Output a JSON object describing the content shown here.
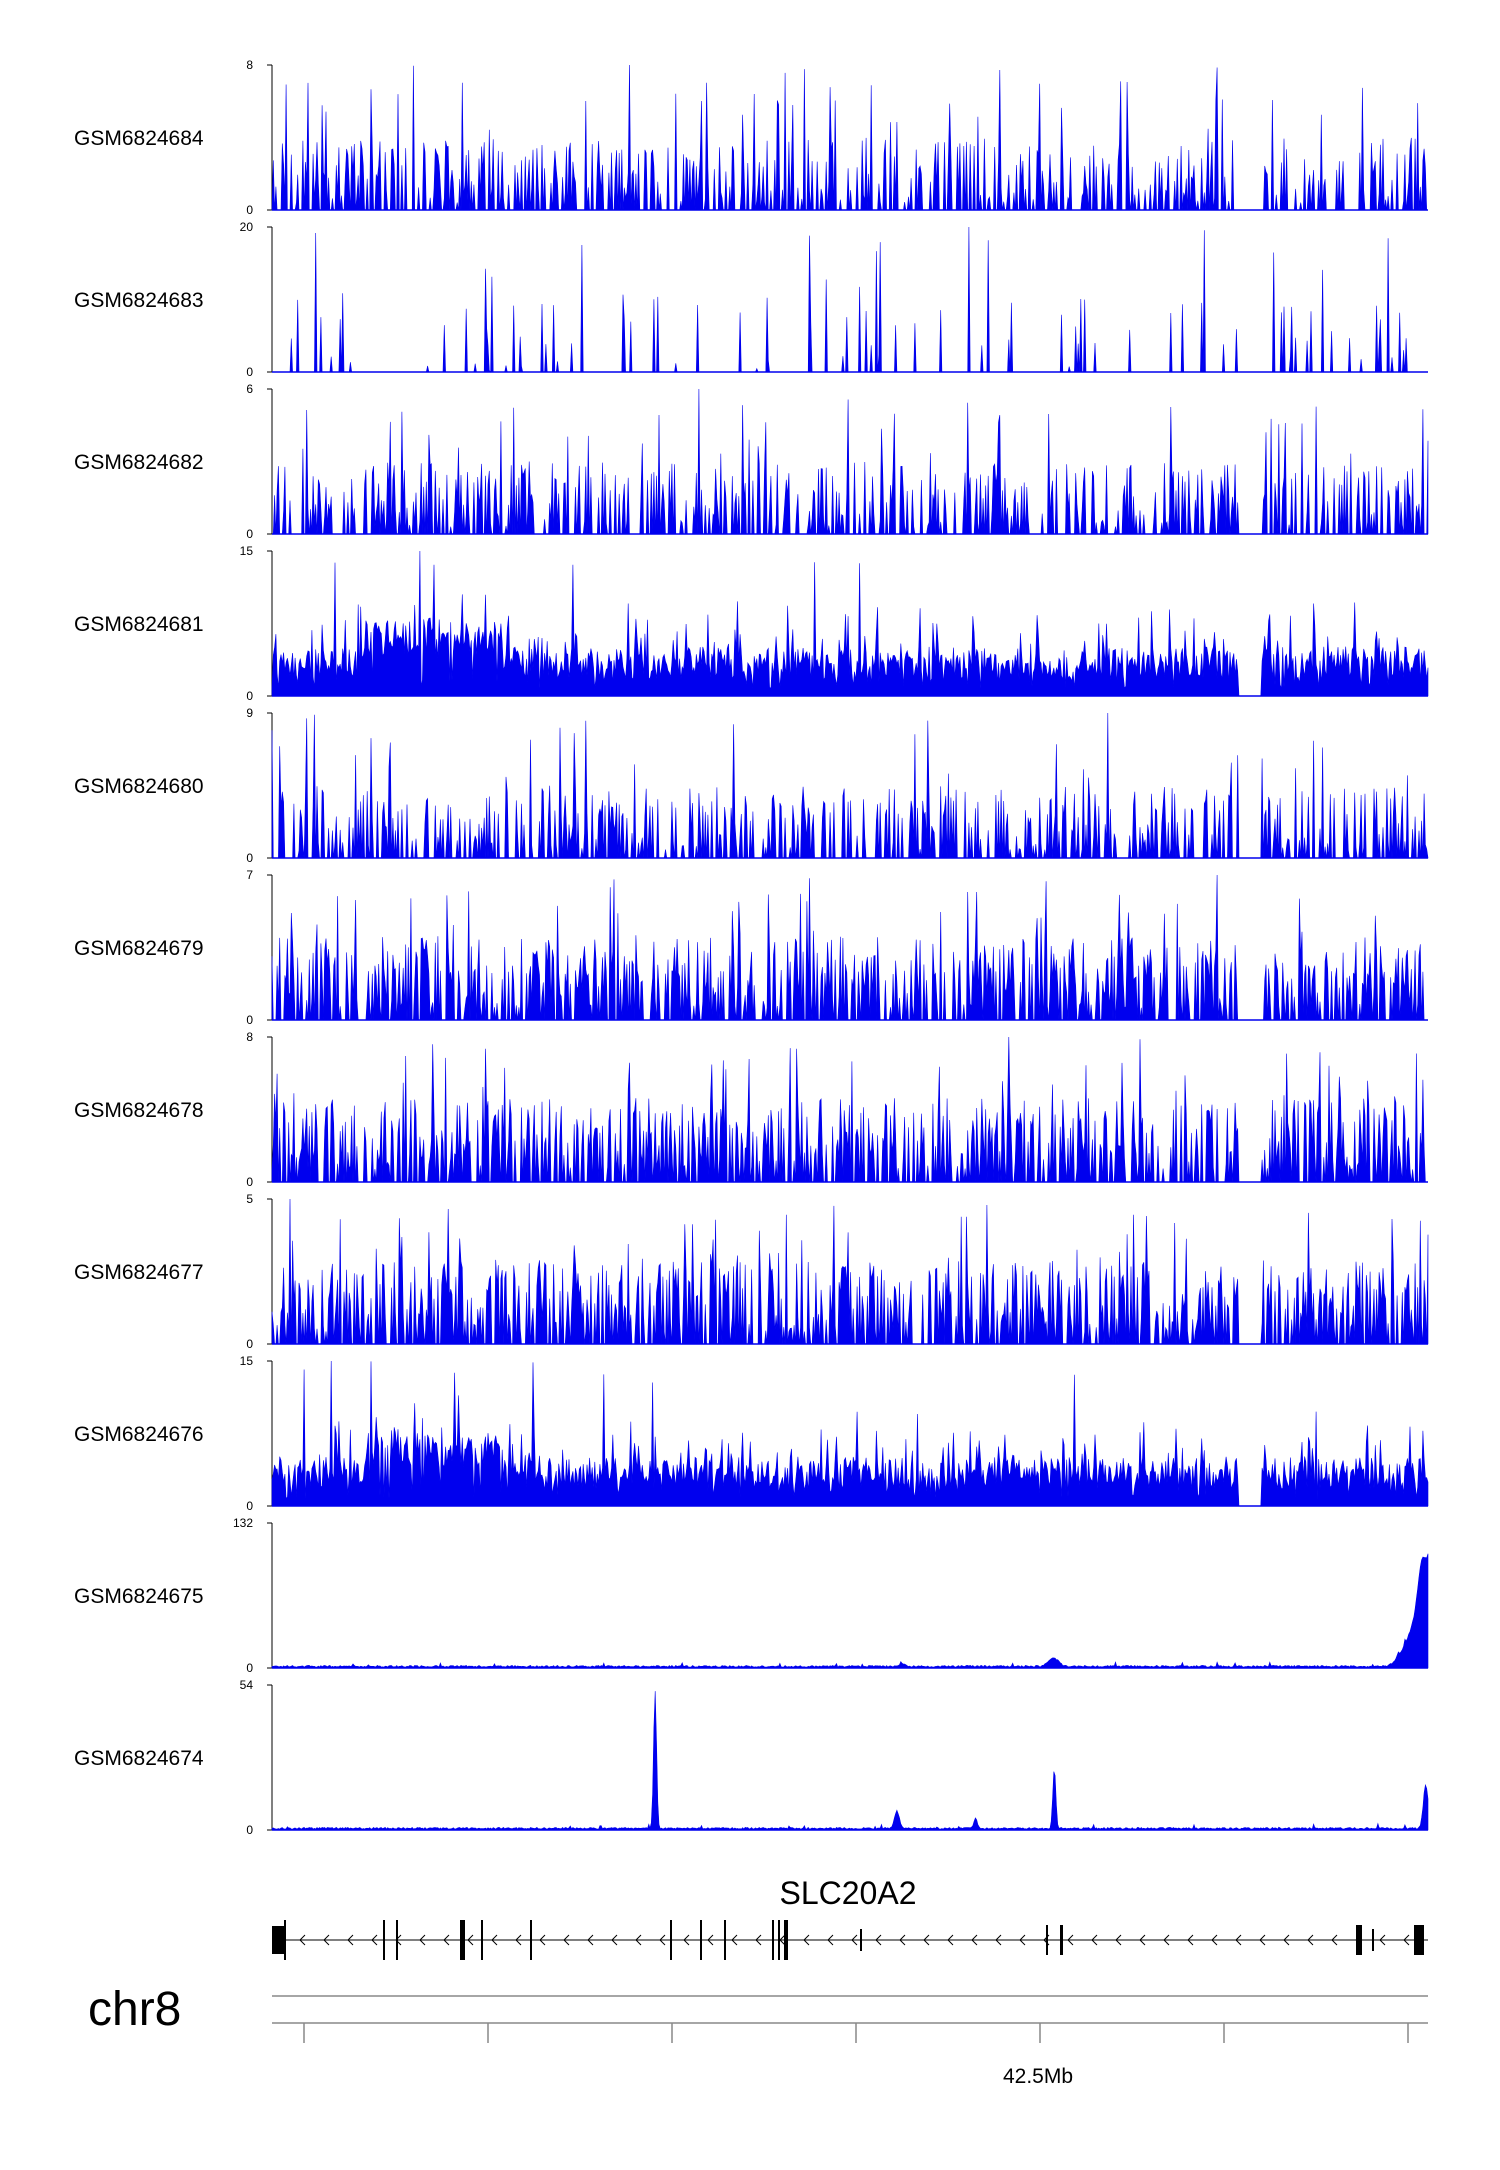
{
  "colors": {
    "signal": "#0000ee",
    "axis": "#000000",
    "gene": "#000000",
    "ruler": "#888888"
  },
  "chart_data": {
    "type": "area",
    "tracks": [
      {
        "name": "GSM6824684",
        "ymax_label": "8",
        "ymin_label": "0",
        "ylim": [
          0,
          8
        ],
        "profile": "sparse"
      },
      {
        "name": "GSM6824683",
        "ymax_label": "20",
        "ymin_label": "0",
        "ylim": [
          0,
          20
        ],
        "profile": "very-sparse"
      },
      {
        "name": "GSM6824682",
        "ymax_label": "6",
        "ymin_label": "0",
        "ylim": [
          0,
          6
        ],
        "profile": "sparse"
      },
      {
        "name": "GSM6824681",
        "ymax_label": "15",
        "ymin_label": "0",
        "ylim": [
          0,
          15
        ],
        "profile": "dense"
      },
      {
        "name": "GSM6824680",
        "ymax_label": "9",
        "ymin_label": "0",
        "ylim": [
          0,
          9
        ],
        "profile": "sparse"
      },
      {
        "name": "GSM6824679",
        "ymax_label": "7",
        "ymin_label": "0",
        "ylim": [
          0,
          7
        ],
        "profile": "medium"
      },
      {
        "name": "GSM6824678",
        "ymax_label": "8",
        "ymin_label": "0",
        "ylim": [
          0,
          8
        ],
        "profile": "medium"
      },
      {
        "name": "GSM6824677",
        "ymax_label": "5",
        "ymin_label": "0",
        "ylim": [
          0,
          5
        ],
        "profile": "medium"
      },
      {
        "name": "GSM6824676",
        "ymax_label": "15",
        "ymin_label": "0",
        "ylim": [
          0,
          15
        ],
        "profile": "dense"
      },
      {
        "name": "GSM6824675",
        "ymax_label": "132",
        "ymin_label": "0",
        "ylim": [
          0,
          132
        ],
        "profile": "peak-right"
      },
      {
        "name": "GSM6824674",
        "ymax_label": "54",
        "ymin_label": "0",
        "ylim": [
          0,
          54
        ],
        "profile": "peak-left"
      }
    ],
    "gene": {
      "name": "SLC20A2",
      "strand": "-"
    },
    "chromosome": "chr8",
    "coordinate_label": "42.5Mb"
  }
}
